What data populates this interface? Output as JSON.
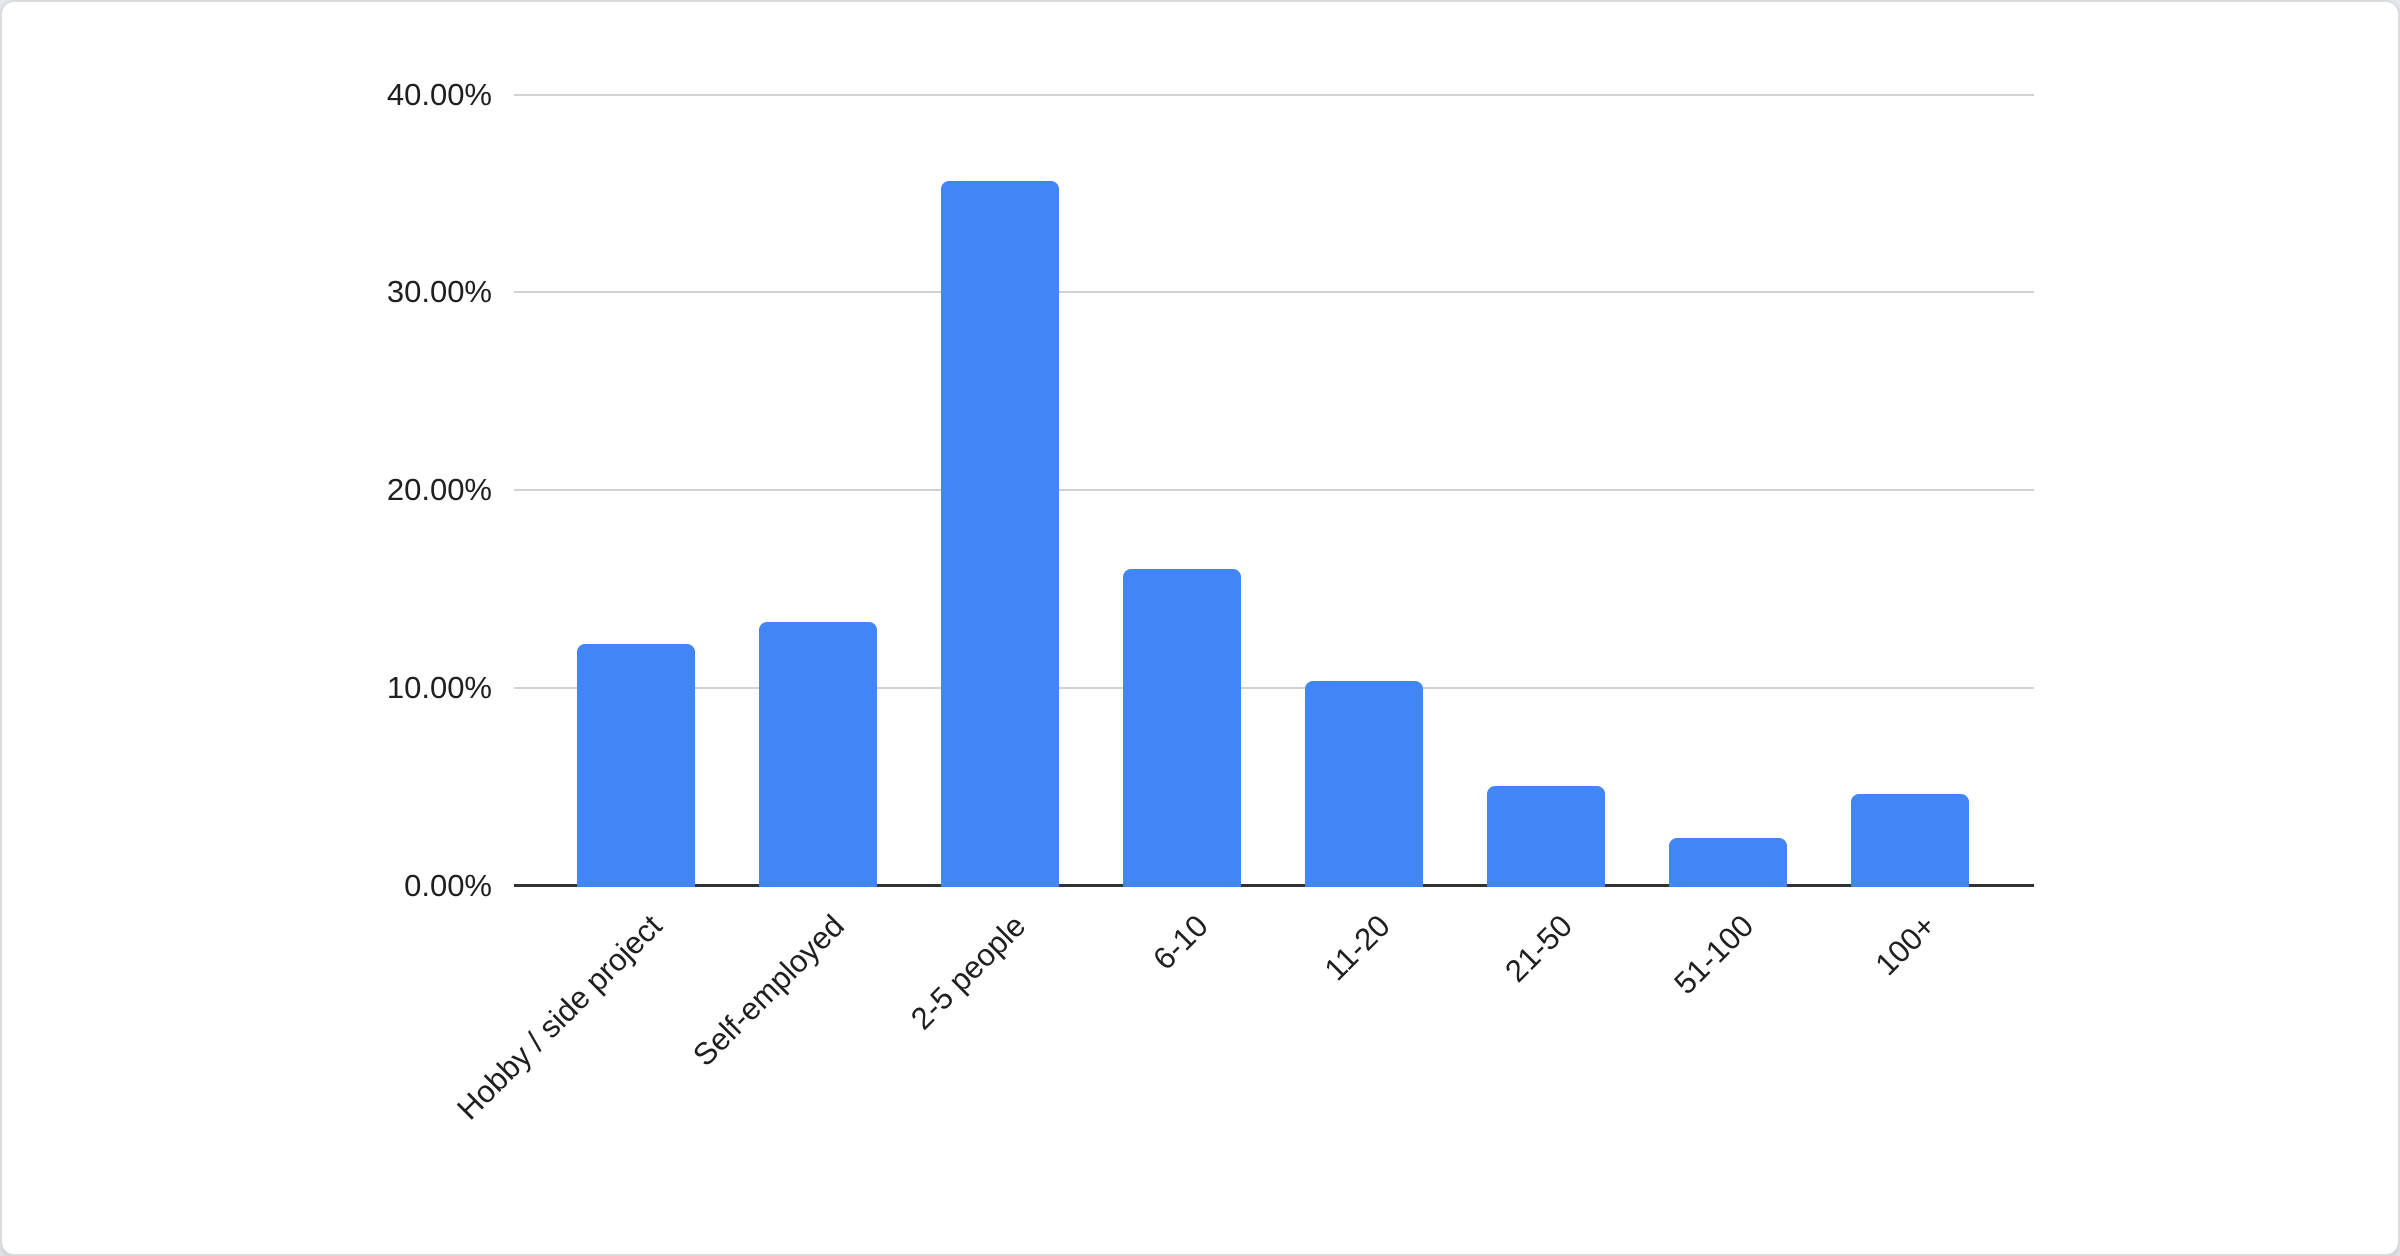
{
  "chart_data": {
    "type": "bar",
    "title": "",
    "xlabel": "",
    "ylabel": "",
    "categories": [
      "Hobby / side project",
      "Self-employed",
      "2-5 people",
      "6-10",
      "11-20",
      "21-50",
      "51-100",
      "100+"
    ],
    "values": [
      12.2,
      13.3,
      35.6,
      16.0,
      10.3,
      5.0,
      2.4,
      4.6
    ],
    "value_unit": "percent",
    "ylim": [
      0,
      40
    ],
    "y_tick_values": [
      0,
      10,
      20,
      30,
      40
    ],
    "y_tick_labels": [
      "0.00%",
      "10.00%",
      "20.00%",
      "30.00%",
      "40.00%"
    ],
    "grid": true,
    "legend": "none",
    "colors": {
      "bar": "#4285f4",
      "gridline": "#d2d2d2",
      "axis_line": "#333333",
      "tick_label": "#1f1f1f",
      "card_background": "#ffffff",
      "card_border": "#d9dbde",
      "page_background": "#e9ebee"
    }
  }
}
